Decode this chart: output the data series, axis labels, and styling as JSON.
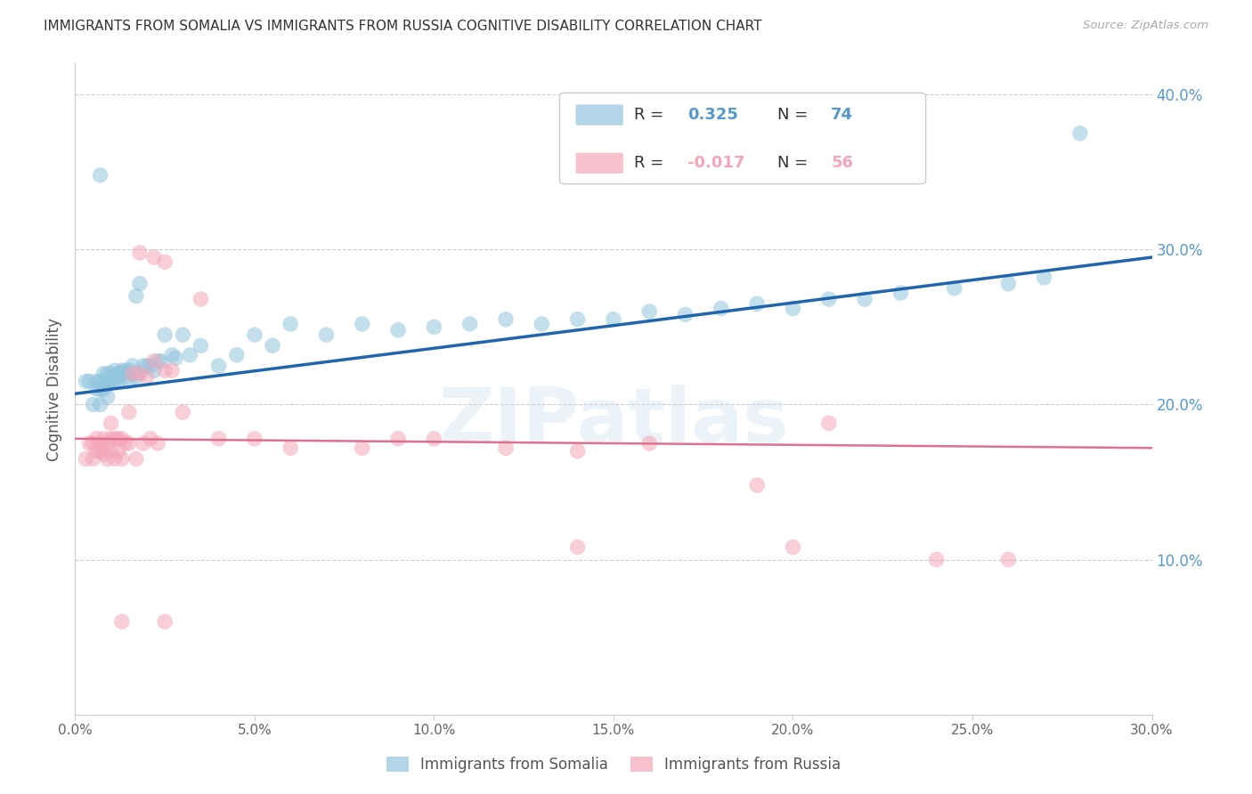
{
  "title": "IMMIGRANTS FROM SOMALIA VS IMMIGRANTS FROM RUSSIA COGNITIVE DISABILITY CORRELATION CHART",
  "source": "Source: ZipAtlas.com",
  "ylabel": "Cognitive Disability",
  "xlim": [
    0.0,
    0.3
  ],
  "ylim": [
    0.0,
    0.42
  ],
  "xticks": [
    0.0,
    0.05,
    0.1,
    0.15,
    0.2,
    0.25,
    0.3
  ],
  "yticks": [
    0.1,
    0.2,
    0.3,
    0.4
  ],
  "ytick_labels": [
    "10.0%",
    "20.0%",
    "30.0%",
    "40.0%"
  ],
  "xtick_labels": [
    "0.0%",
    "5.0%",
    "10.0%",
    "15.0%",
    "20.0%",
    "25.0%",
    "30.0%"
  ],
  "somalia_R": 0.325,
  "somalia_N": 74,
  "russia_R": -0.017,
  "russia_N": 56,
  "somalia_color": "#92c5de",
  "russia_color": "#f4a6b8",
  "trend_somalia_color": "#2166ac",
  "trend_russia_color": "#e07090",
  "background_color": "#ffffff",
  "grid_color": "#cccccc",
  "title_color": "#333333",
  "right_tick_color": "#5599cc",
  "watermark": "ZIPatlas",
  "legend_somalia_label": "Immigrants from Somalia",
  "legend_russia_label": "Immigrants from Russia",
  "somalia_x": [
    0.003,
    0.004,
    0.005,
    0.006,
    0.006,
    0.007,
    0.007,
    0.007,
    0.008,
    0.008,
    0.008,
    0.009,
    0.009,
    0.009,
    0.01,
    0.01,
    0.01,
    0.011,
    0.011,
    0.011,
    0.012,
    0.012,
    0.012,
    0.013,
    0.013,
    0.014,
    0.014,
    0.015,
    0.015,
    0.016,
    0.016,
    0.017,
    0.017,
    0.018,
    0.018,
    0.019,
    0.02,
    0.021,
    0.022,
    0.023,
    0.024,
    0.025,
    0.027,
    0.028,
    0.03,
    0.032,
    0.035,
    0.04,
    0.045,
    0.05,
    0.055,
    0.06,
    0.07,
    0.08,
    0.09,
    0.1,
    0.11,
    0.12,
    0.13,
    0.14,
    0.15,
    0.16,
    0.17,
    0.18,
    0.19,
    0.2,
    0.21,
    0.22,
    0.23,
    0.245,
    0.26,
    0.27,
    0.007,
    0.28
  ],
  "somalia_y": [
    0.215,
    0.215,
    0.2,
    0.21,
    0.215,
    0.2,
    0.21,
    0.215,
    0.21,
    0.215,
    0.22,
    0.205,
    0.215,
    0.22,
    0.215,
    0.215,
    0.22,
    0.215,
    0.218,
    0.222,
    0.215,
    0.218,
    0.22,
    0.22,
    0.222,
    0.218,
    0.222,
    0.215,
    0.222,
    0.22,
    0.225,
    0.218,
    0.27,
    0.22,
    0.278,
    0.225,
    0.225,
    0.225,
    0.222,
    0.228,
    0.228,
    0.245,
    0.232,
    0.23,
    0.245,
    0.232,
    0.238,
    0.225,
    0.232,
    0.245,
    0.238,
    0.252,
    0.245,
    0.252,
    0.248,
    0.25,
    0.252,
    0.255,
    0.252,
    0.255,
    0.255,
    0.26,
    0.258,
    0.262,
    0.265,
    0.262,
    0.268,
    0.268,
    0.272,
    0.275,
    0.278,
    0.282,
    0.348,
    0.375
  ],
  "russia_x": [
    0.003,
    0.004,
    0.005,
    0.005,
    0.006,
    0.006,
    0.007,
    0.007,
    0.008,
    0.008,
    0.009,
    0.009,
    0.01,
    0.01,
    0.011,
    0.011,
    0.012,
    0.012,
    0.013,
    0.013,
    0.014,
    0.015,
    0.016,
    0.017,
    0.018,
    0.019,
    0.02,
    0.021,
    0.022,
    0.023,
    0.025,
    0.027,
    0.03,
    0.035,
    0.04,
    0.05,
    0.06,
    0.08,
    0.09,
    0.1,
    0.12,
    0.14,
    0.16,
    0.19,
    0.21,
    0.24,
    0.26,
    0.01,
    0.015,
    0.018,
    0.022,
    0.025,
    0.14,
    0.2,
    0.013,
    0.025
  ],
  "russia_y": [
    0.165,
    0.175,
    0.165,
    0.175,
    0.17,
    0.178,
    0.17,
    0.175,
    0.168,
    0.178,
    0.165,
    0.175,
    0.17,
    0.178,
    0.165,
    0.178,
    0.17,
    0.178,
    0.165,
    0.178,
    0.175,
    0.175,
    0.22,
    0.165,
    0.22,
    0.175,
    0.218,
    0.178,
    0.228,
    0.175,
    0.222,
    0.222,
    0.195,
    0.268,
    0.178,
    0.178,
    0.172,
    0.172,
    0.178,
    0.178,
    0.172,
    0.17,
    0.175,
    0.148,
    0.188,
    0.1,
    0.1,
    0.188,
    0.195,
    0.298,
    0.295,
    0.292,
    0.108,
    0.108,
    0.06,
    0.06
  ],
  "trend_somalia_start_y": 0.207,
  "trend_somalia_end_y": 0.295,
  "trend_russia_start_y": 0.178,
  "trend_russia_end_y": 0.172
}
